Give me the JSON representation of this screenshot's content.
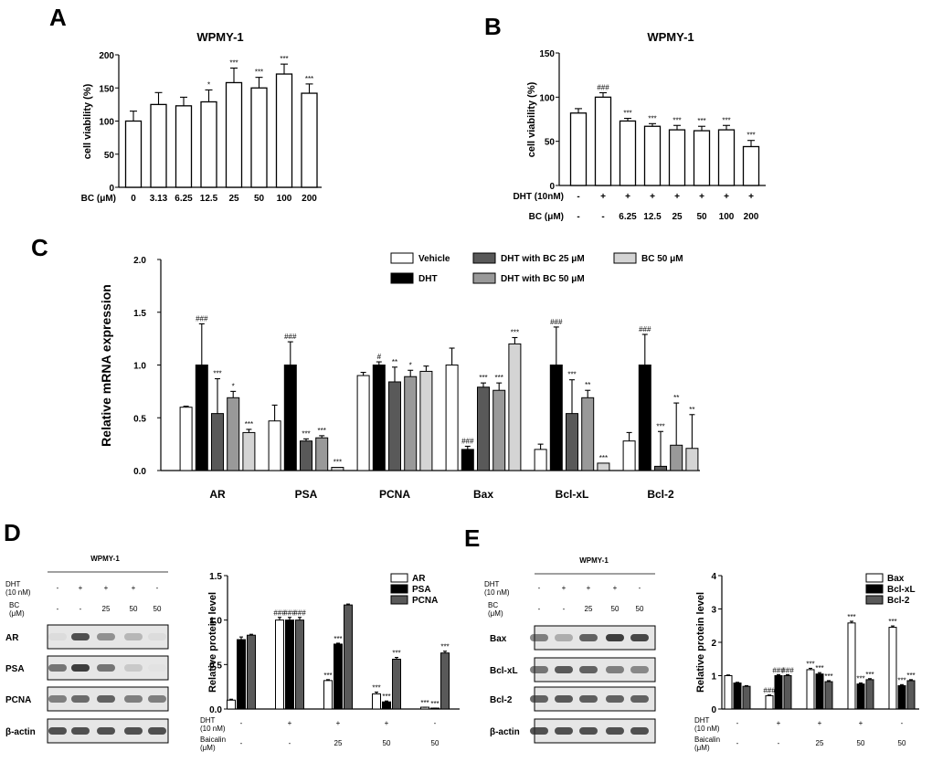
{
  "panel_labels": {
    "a": "A",
    "b": "B",
    "c": "C",
    "d": "D",
    "e": "E"
  },
  "colors": {
    "black": "#000000",
    "white": "#ffffff",
    "dark_gray": "#595959",
    "mid_gray": "#999999",
    "light_gray": "#d4d4d4",
    "blot_bg": "#e6e6e6",
    "band": "#2a2a2a"
  },
  "chart_data": [
    {
      "id": "A",
      "type": "bar",
      "title": "WPMY-1",
      "xlabel": "BC (μM)",
      "ylabel": "cell viability (%)",
      "categories": [
        "0",
        "3.13",
        "6.25",
        "12.5",
        "25",
        "50",
        "100",
        "200"
      ],
      "values": [
        100,
        125,
        123,
        129,
        158,
        150,
        171,
        142
      ],
      "errors": [
        15,
        18,
        13,
        18,
        22,
        16,
        15,
        14
      ],
      "significance": [
        "",
        "",
        "",
        "*",
        "***",
        "***",
        "***",
        "***"
      ],
      "ylim": [
        0,
        200
      ],
      "yticks": [
        0,
        50,
        100,
        150,
        200
      ]
    },
    {
      "id": "B",
      "type": "bar",
      "title": "WPMY-1",
      "ylabel": "cell viability (%)",
      "row_labels": [
        "DHT (10nM)",
        "BC (μM)"
      ],
      "rows": [
        [
          "-",
          "+",
          "+",
          "+",
          "+",
          "+",
          "+",
          "+"
        ],
        [
          "-",
          "-",
          "6.25",
          "12.5",
          "25",
          "50",
          "100",
          "200"
        ]
      ],
      "values": [
        82,
        100,
        73,
        67,
        63,
        62,
        63,
        44
      ],
      "errors": [
        5,
        5,
        3,
        3,
        5,
        5,
        5,
        7
      ],
      "significance": [
        "",
        "###",
        "***",
        "***",
        "***",
        "***",
        "***",
        "***"
      ],
      "ylim": [
        0,
        150
      ],
      "yticks": [
        0,
        50,
        100,
        150
      ]
    },
    {
      "id": "C",
      "type": "bar",
      "ylabel": "Relative mRNA expression",
      "categories": [
        "AR",
        "PSA",
        "PCNA",
        "Bax",
        "Bcl-xL",
        "Bcl-2"
      ],
      "legend": [
        "Vehicle",
        "DHT",
        "DHT with BC 25 μM",
        "DHT with BC 50 μM",
        "BC 50 μM"
      ],
      "series": [
        {
          "name": "Vehicle",
          "values": [
            0.6,
            0.47,
            0.9,
            1.0,
            0.2,
            0.28
          ],
          "errors": [
            0.01,
            0.15,
            0.03,
            0.16,
            0.05,
            0.08
          ],
          "sig": [
            "",
            "",
            "",
            "",
            "",
            ""
          ]
        },
        {
          "name": "DHT",
          "values": [
            1.0,
            1.0,
            1.0,
            0.2,
            1.0,
            1.0
          ],
          "errors": [
            0.39,
            0.22,
            0.03,
            0.03,
            0.36,
            0.29
          ],
          "sig": [
            "###",
            "###",
            "#",
            "###",
            "###",
            "###"
          ]
        },
        {
          "name": "DHT with BC 25 μM",
          "values": [
            0.54,
            0.28,
            0.84,
            0.79,
            0.54,
            0.04
          ],
          "errors": [
            0.33,
            0.02,
            0.14,
            0.04,
            0.32,
            0.33
          ],
          "sig": [
            "***",
            "***",
            "**",
            "***",
            "***",
            "***"
          ]
        },
        {
          "name": "DHT with BC 50 μM",
          "values": [
            0.69,
            0.31,
            0.89,
            0.76,
            0.69,
            0.24
          ],
          "errors": [
            0.06,
            0.02,
            0.06,
            0.07,
            0.07,
            0.4
          ],
          "sig": [
            "*",
            "***",
            "*",
            "***",
            "**",
            "**"
          ]
        },
        {
          "name": "BC 50 μM",
          "values": [
            0.36,
            0.03,
            0.94,
            1.2,
            0.07,
            0.21
          ],
          "errors": [
            0.03,
            0.0,
            0.05,
            0.06,
            0.0,
            0.32
          ],
          "sig": [
            "***",
            "***",
            "",
            "***",
            "***",
            "**"
          ]
        }
      ],
      "ylim": [
        0,
        2.0
      ],
      "yticks": [
        "0.0",
        "0.5",
        "1.0",
        "1.5",
        "2.0"
      ]
    },
    {
      "id": "D",
      "type": "bar",
      "ylabel": "Relative protein level",
      "legend": [
        "AR",
        "PSA",
        "PCNA"
      ],
      "row_labels": [
        "DHT",
        "(10 nM)",
        "Baicalin",
        "(μM)"
      ],
      "rows": [
        [
          "-",
          "+",
          "+",
          "+",
          "-"
        ],
        [
          "-",
          "-",
          "25",
          "50",
          "50"
        ]
      ],
      "series": [
        {
          "name": "AR",
          "values": [
            0.1,
            1.0,
            0.32,
            0.17,
            0.02
          ],
          "errors": [
            0.01,
            0.03,
            0.01,
            0.02,
            0.0
          ],
          "sig": [
            "",
            "###",
            "***",
            "***",
            "***"
          ]
        },
        {
          "name": "PSA",
          "values": [
            0.78,
            1.0,
            0.73,
            0.08,
            0.01
          ],
          "errors": [
            0.03,
            0.03,
            0.01,
            0.01,
            0.0
          ],
          "sig": [
            "",
            "###",
            "***",
            "***",
            "***"
          ]
        },
        {
          "name": "PCNA",
          "values": [
            0.83,
            1.0,
            1.17,
            0.56,
            0.63
          ],
          "errors": [
            0.01,
            0.03,
            0.01,
            0.02,
            0.02
          ],
          "sig": [
            "",
            "###",
            "",
            "***",
            "***"
          ]
        }
      ],
      "ylim": [
        0,
        1.5
      ],
      "yticks": [
        "0.0",
        "0.5",
        "1.0",
        "1.5"
      ]
    },
    {
      "id": "E",
      "type": "bar",
      "ylabel": "Relative protein level",
      "legend": [
        "Bax",
        "Bcl-xL",
        "Bcl-2"
      ],
      "row_labels": [
        "DHT",
        "(10 nM)",
        "Baicalin",
        "(μM)"
      ],
      "rows": [
        [
          "-",
          "+",
          "+",
          "+",
          "-"
        ],
        [
          "-",
          "-",
          "25",
          "50",
          "50"
        ]
      ],
      "series": [
        {
          "name": "Bax",
          "values": [
            1.0,
            0.4,
            1.18,
            2.58,
            2.45
          ],
          "errors": [
            0.02,
            0.02,
            0.04,
            0.05,
            0.04
          ],
          "sig": [
            "",
            "###",
            "***",
            "***",
            "***"
          ]
        },
        {
          "name": "Bcl-xL",
          "values": [
            0.78,
            1.0,
            1.05,
            0.75,
            0.7
          ],
          "errors": [
            0.02,
            0.03,
            0.04,
            0.03,
            0.03
          ],
          "sig": [
            "",
            "###",
            "***",
            "***",
            "***"
          ]
        },
        {
          "name": "Bcl-2",
          "values": [
            0.68,
            1.0,
            0.82,
            0.88,
            0.85
          ],
          "errors": [
            0.02,
            0.03,
            0.03,
            0.03,
            0.03
          ],
          "sig": [
            "",
            "###",
            "***",
            "***",
            "***"
          ]
        }
      ],
      "ylim": [
        0,
        4
      ],
      "yticks": [
        "0",
        "1",
        "2",
        "3",
        "4"
      ]
    }
  ],
  "blot_d": {
    "title": "WPMY-1",
    "dht_label": [
      "DHT",
      "(10 nM)"
    ],
    "bc_label": [
      "BC",
      "(μM)"
    ],
    "dht": [
      "-",
      "+",
      "+",
      "+",
      "-"
    ],
    "bc": [
      "-",
      "-",
      "25",
      "50",
      "50"
    ],
    "bands": [
      "AR",
      "PSA",
      "PCNA",
      "β-actin"
    ],
    "intensity": [
      [
        0.05,
        0.8,
        0.45,
        0.25,
        0.05
      ],
      [
        0.6,
        0.9,
        0.6,
        0.15,
        0.02
      ],
      [
        0.55,
        0.65,
        0.7,
        0.55,
        0.55
      ],
      [
        0.8,
        0.8,
        0.8,
        0.8,
        0.8
      ]
    ]
  },
  "blot_e": {
    "title": "WPMY-1",
    "dht_label": [
      "DHT",
      "(10 nM)"
    ],
    "bc_label": [
      "BC",
      "(μM)"
    ],
    "dht": [
      "-",
      "+",
      "+",
      "+",
      "-"
    ],
    "bc": [
      "-",
      "-",
      "25",
      "50",
      "50"
    ],
    "bands": [
      "Bax",
      "Bcl-xL",
      "Bcl-2",
      "β-actin"
    ],
    "intensity": [
      [
        0.55,
        0.3,
        0.7,
        0.9,
        0.85
      ],
      [
        0.6,
        0.75,
        0.7,
        0.55,
        0.5
      ],
      [
        0.7,
        0.75,
        0.72,
        0.7,
        0.7
      ],
      [
        0.8,
        0.8,
        0.8,
        0.8,
        0.8
      ]
    ]
  }
}
